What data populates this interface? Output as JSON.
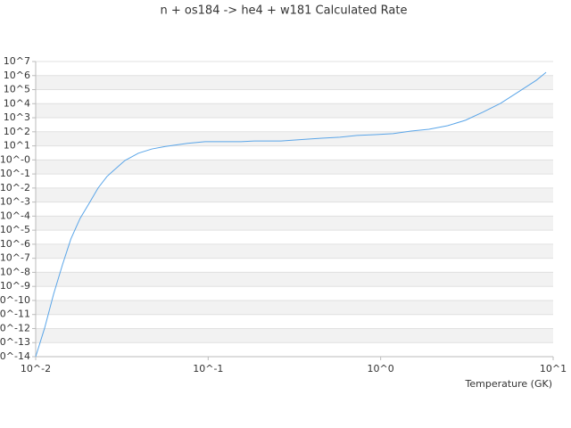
{
  "chart_data": {
    "type": "line",
    "title": "n + os184 -> he4 + w181 Calculated Rate",
    "x_label": "Temperature (GK)",
    "xscale": "log",
    "yscale": "log",
    "grid": true,
    "xlim": [
      0.01,
      10
    ],
    "ylim": [
      1e-14,
      10000000.0
    ],
    "xticks": [
      {
        "value": 0.01,
        "label": "10^-2"
      },
      {
        "value": 0.1,
        "label": "10^-1"
      },
      {
        "value": 1,
        "label": "10^0"
      },
      {
        "value": 10,
        "label": "10^1"
      }
    ],
    "yticks": [
      {
        "value": 1e-14,
        "label": "10^-14"
      },
      {
        "value": 1e-13,
        "label": "10^-13"
      },
      {
        "value": 1e-12,
        "label": "10^-12"
      },
      {
        "value": 1e-11,
        "label": "10^-11"
      },
      {
        "value": 1e-10,
        "label": "10^-10"
      },
      {
        "value": 1e-09,
        "label": "10^-9"
      },
      {
        "value": 1e-08,
        "label": "10^-8"
      },
      {
        "value": 1e-07,
        "label": "10^-7"
      },
      {
        "value": 1e-06,
        "label": "10^-6"
      },
      {
        "value": 1e-05,
        "label": "10^-5"
      },
      {
        "value": 0.0001,
        "label": "10^-4"
      },
      {
        "value": 0.001,
        "label": "10^-3"
      },
      {
        "value": 0.01,
        "label": "10^-2"
      },
      {
        "value": 0.1,
        "label": "10^-1"
      },
      {
        "value": 1,
        "label": "10^-0"
      },
      {
        "value": 10,
        "label": "10^1"
      },
      {
        "value": 100,
        "label": "10^2"
      },
      {
        "value": 1000,
        "label": "10^3"
      },
      {
        "value": 10000,
        "label": "10^4"
      },
      {
        "value": 100000,
        "label": "10^5"
      },
      {
        "value": 1000000,
        "label": "10^6"
      },
      {
        "value": 10000000,
        "label": "10^7"
      }
    ],
    "color": "#5aa5e8",
    "x": [
      0.01,
      0.01127,
      0.0127,
      0.0143,
      0.016,
      0.0181,
      0.0204,
      0.023,
      0.0259,
      0.0292,
      0.0329,
      0.0394,
      0.0472,
      0.0565,
      0.076,
      0.096,
      0.155,
      0.185,
      0.264,
      0.32,
      0.38,
      0.455,
      0.58,
      0.73,
      0.93,
      1.18,
      1.5,
      1.9,
      2.44,
      3.1,
      3.9,
      4.95,
      6.3,
      8.0,
      9.1
    ],
    "values": [
      1e-14,
      1.1e-12,
      2.8e-10,
      3.5e-08,
      2.4e-06,
      7e-05,
      0.0008,
      0.01,
      0.066,
      0.25,
      0.9,
      3,
      6,
      9,
      15,
      20,
      20,
      22,
      22,
      26,
      30,
      35,
      41,
      55,
      63,
      74,
      112,
      150,
      270,
      660,
      2450,
      10500,
      70000,
      470000,
      1700000
    ]
  }
}
